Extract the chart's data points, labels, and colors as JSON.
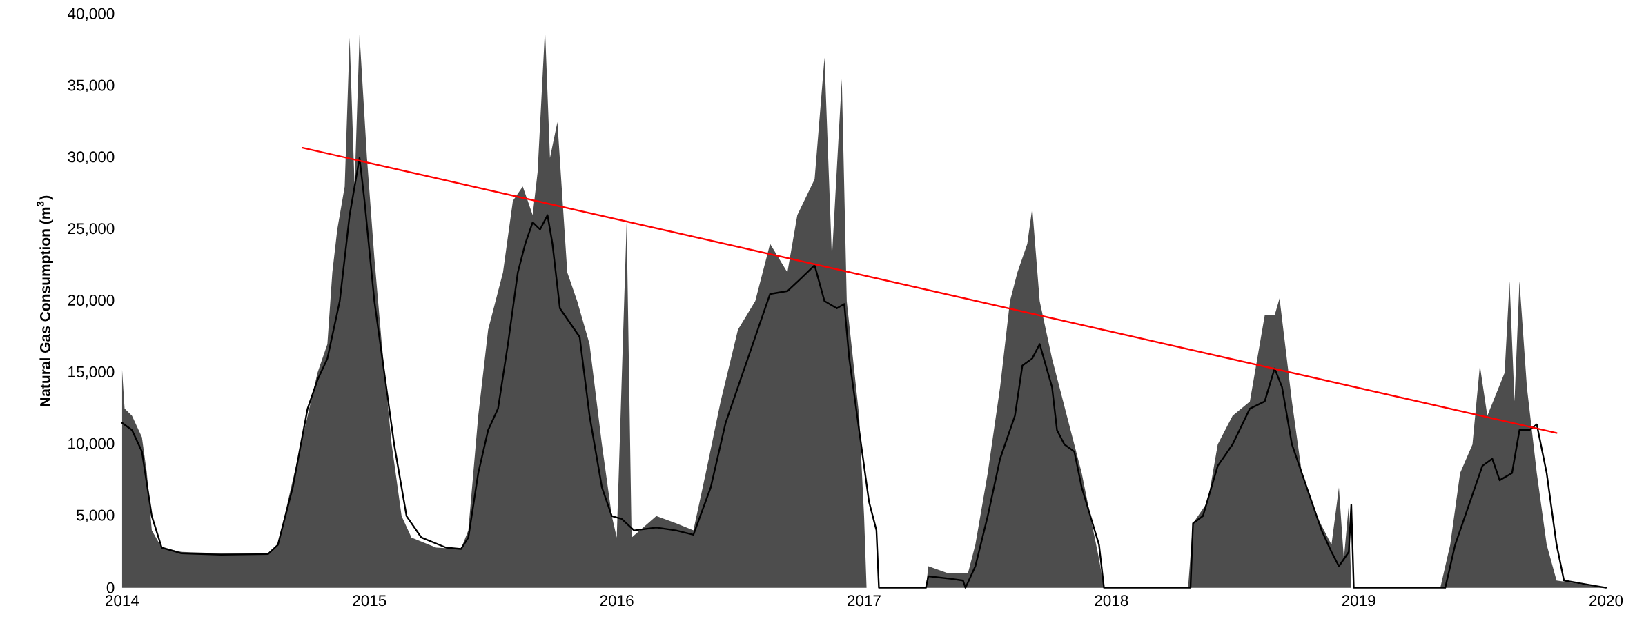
{
  "chart_data": {
    "type": "area",
    "ylabel": "Natural Gas Consumption (m$^{3}$)",
    "xlim": [
      2014,
      2020
    ],
    "xticks": [
      2014,
      2015,
      2016,
      2017,
      2018,
      2019,
      2020
    ],
    "ylim": [
      0,
      40000
    ],
    "yticks": [
      {
        "value": 0,
        "label": "0"
      },
      {
        "value": 5000,
        "label": "5,000"
      },
      {
        "value": 10000,
        "label": "10,000"
      },
      {
        "value": 15000,
        "label": "15,000"
      },
      {
        "value": 20000,
        "label": "20,000"
      },
      {
        "value": 25000,
        "label": "25,000"
      },
      {
        "value": 30000,
        "label": "30,000"
      },
      {
        "value": 35000,
        "label": "35,000"
      },
      {
        "value": 40000,
        "label": "40,000"
      }
    ],
    "series": [
      {
        "color": "#4d4d4d",
        "x": [
          2014,
          2014.01,
          2014.04,
          2014.08,
          2014.1,
          2014.12,
          2014.16,
          2014.24,
          2014.4,
          2014.59,
          2014.63,
          2014.67,
          2014.71,
          2014.75,
          2014.79,
          2014.83,
          2014.85,
          2014.87,
          2014.9,
          2014.92,
          2014.94,
          2014.96,
          2014.99,
          2015.02,
          2015.05,
          2015.09,
          2015.13,
          2015.17,
          2015.27,
          2015.37,
          2015.4,
          2015.44,
          2015.48,
          2015.54,
          2015.58,
          2015.62,
          2015.66,
          2015.68,
          2015.71,
          2015.73,
          2015.76,
          2015.8,
          2015.84,
          2015.89,
          2015.94,
          2015.98,
          2016,
          2016.04,
          2016.06,
          2016.16,
          2016.24,
          2016.31,
          2016.36,
          2016.42,
          2016.49,
          2016.56,
          2016.62,
          2016.69,
          2016.73,
          2016.8,
          2016.84,
          2016.87,
          2016.91,
          2016.93,
          2016.98,
          2017,
          2017.01,
          2017.25,
          2017.26,
          2017.34,
          2017.4,
          2017.42,
          2017.45,
          2017.5,
          2017.55,
          2017.59,
          2017.62,
          2017.66,
          2017.68,
          2017.71,
          2017.76,
          2017.82,
          2017.88,
          2017.95,
          2017.97,
          2018.31,
          2018.33,
          2018.39,
          2018.43,
          2018.49,
          2018.56,
          2018.62,
          2018.66,
          2018.68,
          2018.73,
          2018.77,
          2018.83,
          2018.89,
          2018.92,
          2018.94,
          2018.96,
          2018.97,
          2019.33,
          2019.37,
          2019.41,
          2019.46,
          2019.49,
          2019.52,
          2019.59,
          2019.61,
          2019.63,
          2019.65,
          2019.68,
          2019.72,
          2019.76,
          2019.8,
          2020
        ],
        "values": [
          15200,
          12500,
          12000,
          10500,
          8000,
          4000,
          2800,
          2500,
          2400,
          2400,
          3000,
          6000,
          9000,
          12000,
          15000,
          17000,
          22000,
          25000,
          28000,
          38400,
          28000,
          38600,
          30000,
          23000,
          17000,
          10000,
          5000,
          3500,
          2800,
          2700,
          4000,
          12000,
          18000,
          22000,
          27000,
          28000,
          26000,
          29000,
          39000,
          30000,
          32500,
          22000,
          20000,
          17000,
          10000,
          5000,
          3500,
          25500,
          3500,
          5000,
          4500,
          4000,
          8000,
          13000,
          18000,
          20000,
          24000,
          22000,
          26000,
          28500,
          37000,
          23000,
          35500,
          20000,
          12000,
          5000,
          0,
          0,
          1500,
          1000,
          1000,
          1000,
          3000,
          8000,
          14000,
          20000,
          22000,
          24000,
          26500,
          20000,
          16000,
          12000,
          8000,
          2000,
          0,
          0,
          4500,
          6000,
          10000,
          12000,
          13000,
          19000,
          19000,
          20200,
          13000,
          8000,
          5000,
          3000,
          7000,
          2000,
          5800,
          0,
          0,
          3000,
          8000,
          10000,
          15500,
          12000,
          15000,
          21400,
          13000,
          21400,
          14000,
          8000,
          3000,
          500,
          0
        ]
      },
      {
        "type": "line",
        "color": "#000000",
        "x": [
          2014,
          2014.04,
          2014.08,
          2014.12,
          2014.16,
          2014.24,
          2014.4,
          2014.59,
          2014.63,
          2014.69,
          2014.75,
          2014.79,
          2014.83,
          2014.88,
          2014.92,
          2014.94,
          2014.96,
          2014.98,
          2015.02,
          2015.06,
          2015.1,
          2015.15,
          2015.21,
          2015.31,
          2015.37,
          2015.4,
          2015.44,
          2015.48,
          2015.52,
          2015.56,
          2015.6,
          2015.63,
          2015.66,
          2015.69,
          2015.72,
          2015.74,
          2015.77,
          2015.81,
          2015.85,
          2015.89,
          2015.94,
          2015.98,
          2016.02,
          2016.07,
          2016.16,
          2016.24,
          2016.31,
          2016.38,
          2016.44,
          2016.51,
          2016.58,
          2016.62,
          2016.69,
          2016.74,
          2016.8,
          2016.84,
          2016.89,
          2016.92,
          2016.94,
          2016.98,
          2017.02,
          2017.05,
          2017.06,
          2017.25,
          2017.26,
          2017.36,
          2017.4,
          2017.41,
          2017.45,
          2017.5,
          2017.55,
          2017.61,
          2017.64,
          2017.68,
          2017.71,
          2017.76,
          2017.78,
          2017.81,
          2017.85,
          2017.88,
          2017.95,
          2017.97,
          2018.32,
          2018.33,
          2018.37,
          2018.43,
          2018.49,
          2018.56,
          2018.62,
          2018.66,
          2018.69,
          2018.73,
          2018.79,
          2018.85,
          2018.89,
          2018.92,
          2018.96,
          2018.97,
          2018.98,
          2019.35,
          2019.39,
          2019.43,
          2019.5,
          2019.54,
          2019.57,
          2019.62,
          2019.65,
          2019.69,
          2019.72,
          2019.76,
          2019.8,
          2019.83,
          2020
        ],
        "values": [
          11500,
          11000,
          9500,
          5000,
          2800,
          2400,
          2300,
          2350,
          3000,
          7000,
          12500,
          14500,
          16000,
          20000,
          26000,
          28000,
          30000,
          27000,
          20000,
          15000,
          10000,
          5000,
          3500,
          2800,
          2700,
          3500,
          8000,
          11000,
          12500,
          17000,
          22000,
          24000,
          25500,
          25000,
          26000,
          24000,
          19500,
          18500,
          17500,
          12000,
          7000,
          5000,
          4800,
          4000,
          4200,
          4000,
          3700,
          7000,
          11500,
          15000,
          18500,
          20500,
          20700,
          21500,
          22500,
          20000,
          19500,
          19800,
          16000,
          11000,
          6000,
          4000,
          0,
          0,
          800,
          600,
          500,
          0,
          1500,
          5000,
          9000,
          12000,
          15500,
          16000,
          17000,
          14000,
          11000,
          10000,
          9500,
          7000,
          3000,
          0,
          0,
          4500,
          5000,
          8500,
          10000,
          12500,
          13000,
          15300,
          14000,
          10000,
          7000,
          4000,
          2500,
          1500,
          2500,
          5800,
          0,
          0,
          3000,
          5000,
          8500,
          9000,
          7500,
          8000,
          11000,
          11000,
          11400,
          8000,
          3000,
          500,
          0
        ]
      },
      {
        "type": "line",
        "color": "#ff0000",
        "x": [
          2014.73,
          2019.8
        ],
        "values": [
          30700,
          10800
        ]
      }
    ]
  }
}
